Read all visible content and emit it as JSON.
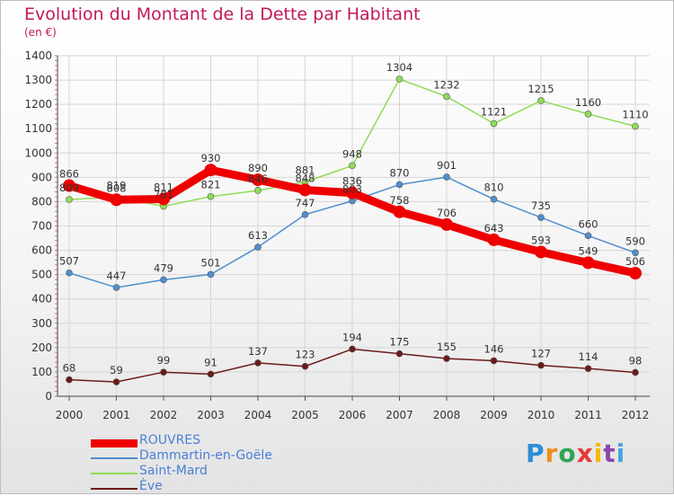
{
  "title": "Evolution du Montant de la Dette par Habitant",
  "unit": "(en €)",
  "brand": {
    "text": "Proxiti",
    "letters": [
      "P",
      "r",
      "o",
      "x",
      "i",
      "t",
      "i"
    ],
    "colors": [
      "#2b8ed8",
      "#f08c1a",
      "#31a552",
      "#e53935",
      "#f5b800",
      "#8e44ad",
      "#4aa3df"
    ]
  },
  "chart_data": {
    "type": "line",
    "title": "Evolution du Montant de la Dette par Habitant",
    "subtitle": "(en €)",
    "x": [
      "2000",
      "2001",
      "2002",
      "2003",
      "2004",
      "2005",
      "2006",
      "2007",
      "2008",
      "2009",
      "2010",
      "2011",
      "2012"
    ],
    "ylim": [
      0,
      1400
    ],
    "yticks": [
      0,
      100,
      200,
      300,
      400,
      500,
      600,
      700,
      800,
      900,
      1000,
      1100,
      1200,
      1300,
      1400
    ],
    "grid": true,
    "legend_position": "bottom-left",
    "series": [
      {
        "name": "ROUVRES",
        "color": "#ee0000",
        "values": [
          866,
          808,
          811,
          930,
          890,
          848,
          836,
          758,
          706,
          643,
          593,
          549,
          506
        ]
      },
      {
        "name": "Dammartin-en-Goële",
        "color": "#4f8fce",
        "values": [
          507,
          447,
          479,
          501,
          613,
          747,
          803,
          870,
          901,
          810,
          735,
          660,
          590
        ]
      },
      {
        "name": "Saint-Mard",
        "color": "#8fdc57",
        "values": [
          809,
          819,
          781,
          821,
          846,
          881,
          948,
          1304,
          1232,
          1121,
          1215,
          1160,
          1110
        ]
      },
      {
        "name": "Ève",
        "color": "#6b1a1a",
        "values": [
          68,
          59,
          99,
          91,
          137,
          123,
          194,
          175,
          155,
          146,
          127,
          114,
          98
        ]
      }
    ]
  }
}
